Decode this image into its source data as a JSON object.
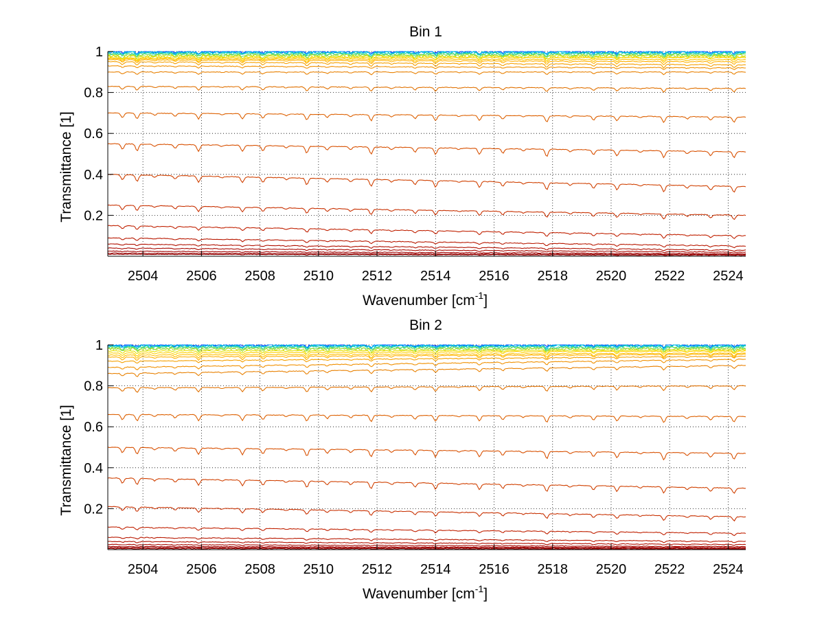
{
  "figure_background": "#ffffff",
  "chart_data": [
    {
      "type": "line",
      "title": "Bin 1",
      "xlabel": "Wavenumber [cm",
      "xlabel_exponent": "-1",
      "xlabel_suffix": "]",
      "ylabel": "Transmittance [1]",
      "xlim": [
        2502.8,
        2524.6
      ],
      "ylim": [
        0,
        1
      ],
      "xticks": [
        2504,
        2506,
        2508,
        2510,
        2512,
        2514,
        2516,
        2518,
        2520,
        2522,
        2524
      ],
      "yticks": [
        0.2,
        0.4,
        0.6,
        0.8,
        1
      ],
      "ytick_labels": [
        "0.2",
        "0.4",
        "0.6",
        "0.8",
        "1"
      ],
      "grid": true,
      "colormap": "jet (blue at top traces, dark red at bottom)",
      "series_baseline_start": [
        1.0,
        0.998,
        0.995,
        0.99,
        0.985,
        0.98,
        0.975,
        0.97,
        0.965,
        0.96,
        0.95,
        0.93,
        0.9,
        0.83,
        0.7,
        0.55,
        0.4,
        0.25,
        0.15,
        0.09,
        0.06,
        0.04,
        0.025,
        0.015,
        0.01
      ],
      "series_baseline_end": [
        1.0,
        0.998,
        0.995,
        0.99,
        0.985,
        0.98,
        0.975,
        0.97,
        0.96,
        0.95,
        0.935,
        0.92,
        0.9,
        0.82,
        0.68,
        0.51,
        0.34,
        0.2,
        0.1,
        0.05,
        0.03,
        0.02,
        0.012,
        0.008,
        0.005
      ],
      "series_colors": [
        "#0040ff",
        "#0090ff",
        "#00c8e0",
        "#20d0a0",
        "#70dc60",
        "#b0e030",
        "#e8e000",
        "#ffd000",
        "#ffc000",
        "#ffb000",
        "#f5a000",
        "#f09000",
        "#e88000",
        "#e07000",
        "#dd6000",
        "#d85000",
        "#d04000",
        "#c83000",
        "#c02000",
        "#b81800",
        "#b01000",
        "#a80800",
        "#a00000",
        "#980000",
        "#900000"
      ]
    },
    {
      "type": "line",
      "title": "Bin 2",
      "xlabel": "Wavenumber [cm",
      "xlabel_exponent": "-1",
      "xlabel_suffix": "]",
      "ylabel": "Transmittance [1]",
      "xlim": [
        2502.8,
        2524.6
      ],
      "ylim": [
        0,
        1
      ],
      "xticks": [
        2504,
        2506,
        2508,
        2510,
        2512,
        2514,
        2516,
        2518,
        2520,
        2522,
        2524
      ],
      "yticks": [
        0.2,
        0.4,
        0.6,
        0.8,
        1
      ],
      "ytick_labels": [
        "0.2",
        "0.4",
        "0.6",
        "0.8",
        "1"
      ],
      "grid": true,
      "colormap": "jet (blue at top traces, dark red at bottom)",
      "series_baseline_start": [
        1.0,
        0.998,
        0.995,
        0.99,
        0.985,
        0.98,
        0.97,
        0.96,
        0.95,
        0.94,
        0.92,
        0.89,
        0.86,
        0.79,
        0.66,
        0.5,
        0.35,
        0.21,
        0.11,
        0.06,
        0.04,
        0.025,
        0.015,
        0.01,
        0.005
      ],
      "series_baseline_end": [
        1.0,
        0.998,
        0.995,
        0.99,
        0.985,
        0.98,
        0.975,
        0.97,
        0.96,
        0.955,
        0.945,
        0.93,
        0.9,
        0.8,
        0.65,
        0.47,
        0.3,
        0.16,
        0.08,
        0.04,
        0.025,
        0.015,
        0.01,
        0.006,
        0.003
      ],
      "series_colors": [
        "#0040ff",
        "#0090ff",
        "#00c8e0",
        "#20d0a0",
        "#70dc60",
        "#b0e030",
        "#e8e000",
        "#ffd000",
        "#ffc000",
        "#ffb000",
        "#f5a000",
        "#f09000",
        "#e88000",
        "#e07000",
        "#dd6000",
        "#d85000",
        "#d04000",
        "#c83000",
        "#c02000",
        "#b81800",
        "#b01000",
        "#a80800",
        "#a00000",
        "#980000",
        "#900000"
      ]
    }
  ],
  "absorption_line_positions": [
    2503.3,
    2503.8,
    2504.4,
    2505.1,
    2505.9,
    2506.7,
    2507.4,
    2508.1,
    2508.9,
    2509.6,
    2510.3,
    2511.1,
    2511.8,
    2512.5,
    2513.3,
    2514.0,
    2514.8,
    2515.5,
    2516.3,
    2517.0,
    2517.8,
    2518.6,
    2519.4,
    2520.2,
    2521.0,
    2521.8,
    2522.6,
    2523.4,
    2524.2
  ]
}
